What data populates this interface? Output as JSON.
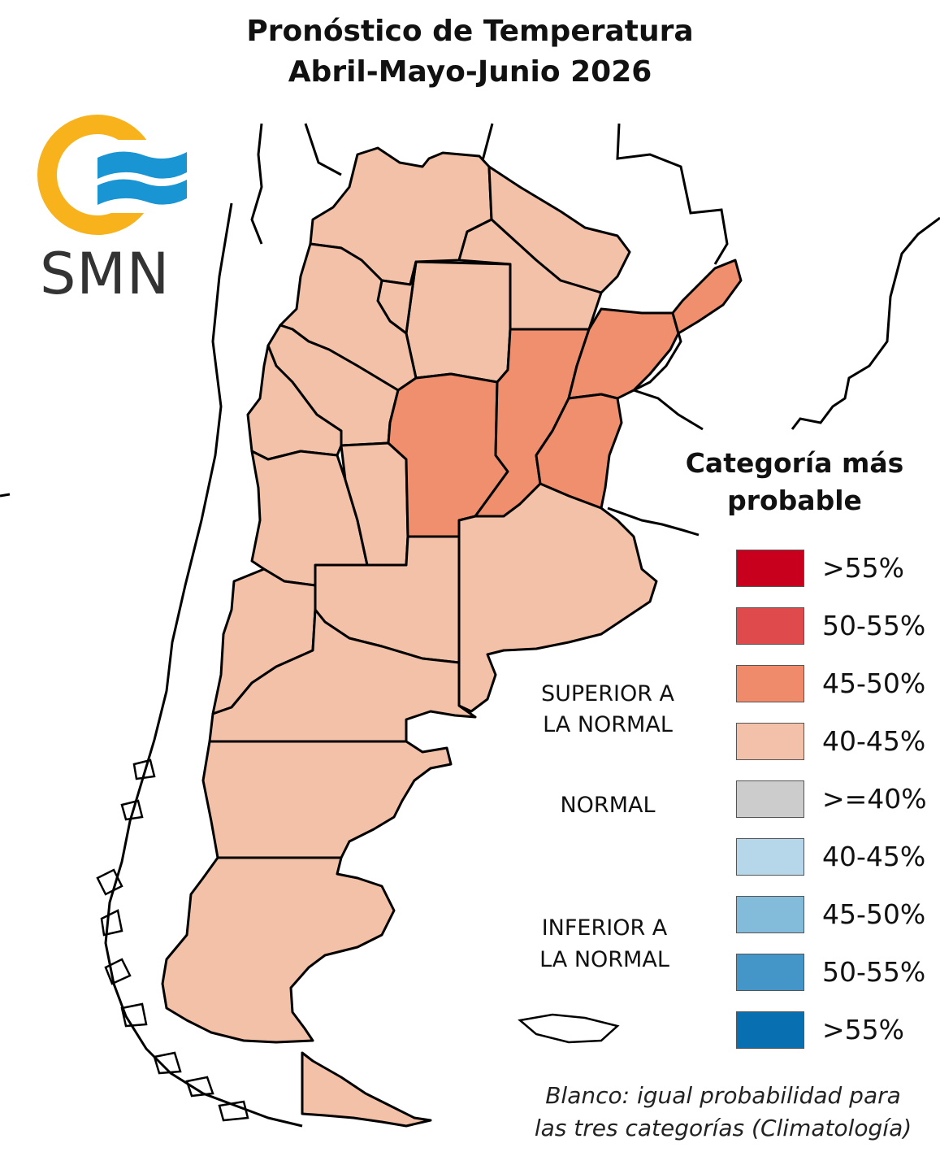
{
  "title": {
    "line1": "Pronóstico de Temperatura",
    "line2": "Abril-Mayo-Junio 2026"
  },
  "logo": {
    "text": "SMN",
    "colors": {
      "ring": "#f7b21c",
      "waves": "#1a95d3",
      "text": "#333333"
    }
  },
  "map": {
    "fill_colors": {
      "light": "#f3c1a8",
      "medium": "#ef8f6e",
      "outline": "#000000"
    }
  },
  "legend": {
    "title_line1": "Categoría más",
    "title_line2": "probable",
    "items": [
      {
        "label": ">55%",
        "color": "#c8001e"
      },
      {
        "label": "50-55%",
        "color": "#df4a4c"
      },
      {
        "label": "45-50%",
        "color": "#ef8a6a"
      },
      {
        "label": "40-45%",
        "color": "#f3c1aa"
      },
      {
        "label": ">=40%",
        "color": "#cccccc"
      },
      {
        "label": "40-45%",
        "color": "#b6d6ea"
      },
      {
        "label": "45-50%",
        "color": "#83bbdb"
      },
      {
        "label": "50-55%",
        "color": "#4396c7"
      },
      {
        "label": ">55%",
        "color": "#0870b0"
      }
    ],
    "categories": {
      "superior_line1": "SUPERIOR A",
      "superior_line2": "LA NORMAL",
      "normal": "NORMAL",
      "inferior_line1": "INFERIOR A",
      "inferior_line2": "LA NORMAL"
    }
  },
  "note": {
    "line1": "Blanco: igual probabilidad para",
    "line2": "las tres categorías (Climatología)"
  }
}
